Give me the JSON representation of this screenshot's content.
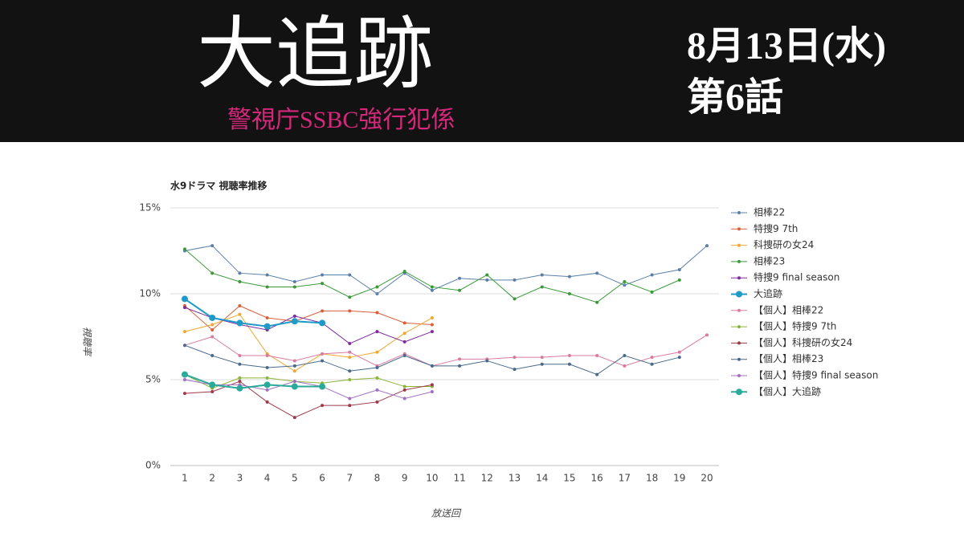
{
  "header": {
    "title": "大追跡",
    "subtitle": "警視庁SSBC強行犯係",
    "date": "8月13日(水)",
    "episode": "第6話"
  },
  "chart_data": {
    "type": "line",
    "title": "水9ドラマ 視聴率推移",
    "x_label": "放送回",
    "y_label": "視聴率",
    "categories": [
      "1",
      "2",
      "3",
      "4",
      "5",
      "6",
      "7",
      "8",
      "9",
      "10",
      "11",
      "12",
      "13",
      "14",
      "15",
      "16",
      "17",
      "18",
      "19",
      "20"
    ],
    "ylim": [
      0,
      15
    ],
    "yticks": [
      {
        "value": 0,
        "label": "0%"
      },
      {
        "value": 5,
        "label": "5%"
      },
      {
        "value": 10,
        "label": "10%"
      },
      {
        "value": 15,
        "label": "15%"
      }
    ],
    "grid": true,
    "legend": "right",
    "series": [
      {
        "name": "相棒22",
        "color": "#5b80a8",
        "values": [
          12.5,
          12.8,
          11.2,
          11.1,
          10.7,
          11.1,
          11.1,
          10.0,
          11.2,
          10.2,
          10.9,
          10.8,
          10.8,
          11.1,
          11.0,
          11.2,
          10.5,
          11.1,
          11.4,
          12.8
        ]
      },
      {
        "name": "特捜9 7th",
        "color": "#d9603b",
        "values": [
          9.3,
          7.9,
          9.3,
          8.6,
          8.4,
          9.0,
          9.0,
          8.9,
          8.3,
          8.2,
          null,
          null,
          null,
          null,
          null,
          null,
          null,
          null,
          null,
          null
        ]
      },
      {
        "name": "科捜研の女24",
        "color": "#f0a830",
        "values": [
          7.8,
          8.2,
          8.8,
          6.5,
          5.5,
          6.5,
          6.3,
          6.6,
          7.7,
          8.6,
          null,
          null,
          null,
          null,
          null,
          null,
          null,
          null,
          null,
          null
        ]
      },
      {
        "name": "相棒23",
        "color": "#3a9a3a",
        "values": [
          12.6,
          11.2,
          10.7,
          10.4,
          10.4,
          10.6,
          9.8,
          10.4,
          11.3,
          10.4,
          10.2,
          11.1,
          9.7,
          10.4,
          10.0,
          9.5,
          10.7,
          10.1,
          10.8,
          null
        ]
      },
      {
        "name": "特捜9 final season",
        "color": "#7b2d9e",
        "values": [
          9.2,
          8.6,
          8.2,
          7.9,
          8.7,
          8.3,
          7.1,
          7.8,
          7.2,
          7.8,
          null,
          null,
          null,
          null,
          null,
          null,
          null,
          null,
          null,
          null
        ]
      },
      {
        "name": "大追跡",
        "color": "#1e9ac8",
        "values": [
          9.7,
          8.6,
          8.3,
          8.1,
          8.4,
          8.3,
          null,
          null,
          null,
          null,
          null,
          null,
          null,
          null,
          null,
          null,
          null,
          null,
          null,
          null
        ]
      },
      {
        "name": "【個人】相棒22",
        "color": "#d97aa0",
        "values": [
          7.0,
          7.5,
          6.4,
          6.4,
          6.1,
          6.5,
          6.6,
          5.8,
          6.5,
          5.8,
          6.2,
          6.2,
          6.3,
          6.3,
          6.4,
          6.4,
          5.8,
          6.3,
          6.6,
          7.6
        ]
      },
      {
        "name": "【個人】特捜9 7th",
        "color": "#8db43a",
        "values": [
          5.3,
          4.5,
          5.1,
          5.1,
          4.9,
          4.8,
          5.0,
          5.1,
          4.6,
          4.6,
          null,
          null,
          null,
          null,
          null,
          null,
          null,
          null,
          null,
          null
        ]
      },
      {
        "name": "【個人】科捜研の女24",
        "color": "#9c3a4a",
        "values": [
          4.2,
          4.3,
          4.9,
          3.7,
          2.8,
          3.5,
          3.5,
          3.7,
          4.4,
          4.7,
          null,
          null,
          null,
          null,
          null,
          null,
          null,
          null,
          null,
          null
        ]
      },
      {
        "name": "【個人】相棒23",
        "color": "#4a6a8a",
        "values": [
          7.0,
          6.4,
          5.9,
          5.7,
          5.8,
          6.1,
          5.5,
          5.7,
          6.4,
          5.8,
          5.8,
          6.1,
          5.6,
          5.9,
          5.9,
          5.3,
          6.4,
          5.9,
          6.3,
          null
        ]
      },
      {
        "name": "【個人】特捜9 final season",
        "color": "#a070c0",
        "values": [
          5.0,
          4.7,
          4.7,
          4.4,
          4.9,
          4.6,
          3.9,
          4.4,
          3.9,
          4.3,
          null,
          null,
          null,
          null,
          null,
          null,
          null,
          null,
          null,
          null
        ]
      },
      {
        "name": "【個人】大追跡",
        "color": "#2aaa9a",
        "values": [
          5.3,
          4.7,
          4.5,
          4.7,
          4.6,
          4.6,
          null,
          null,
          null,
          null,
          null,
          null,
          null,
          null,
          null,
          null,
          null,
          null,
          null,
          null
        ]
      }
    ]
  }
}
